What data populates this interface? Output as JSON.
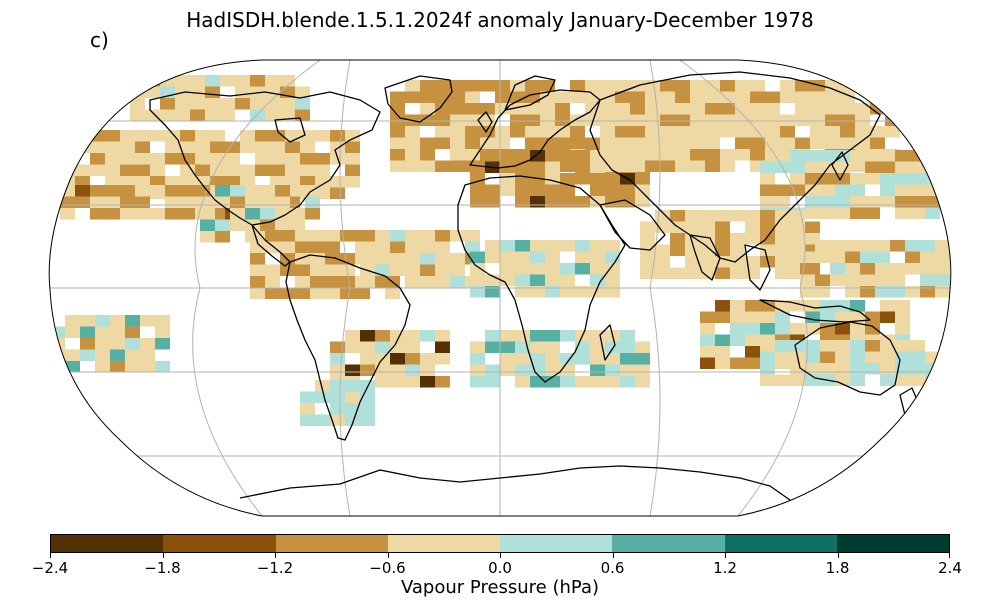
{
  "title": "HadISDH.blende.1.5.1.2024f anomaly January-December 1978",
  "panel_label": "c)",
  "colorbar": {
    "label": "Vapour Pressure (hPa)",
    "ticks": [
      "−2.4",
      "−1.8",
      "−1.2",
      "−0.6",
      "0.0",
      "0.6",
      "1.2",
      "1.8",
      "2.4"
    ],
    "colors": [
      "#543005",
      "#8c510a",
      "#c7923f",
      "#eed8a4",
      "#afe0d9",
      "#57b0a4",
      "#0e6f66",
      "#003c30"
    ]
  },
  "colors": {
    "coast": "#000000",
    "grid": "#b3b3b3",
    "neg_strong": "#8c510a",
    "neg": "#c7923f",
    "neg_weak": "#eed8a4",
    "pos_weak": "#afe0d9",
    "pos": "#57b0a4",
    "pos_strong": "#0e6f66",
    "neg_extreme": "#543005"
  }
}
